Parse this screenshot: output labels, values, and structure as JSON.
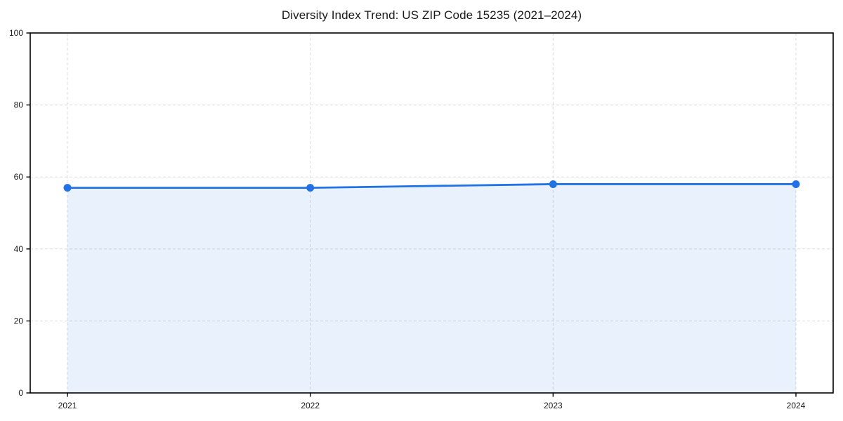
{
  "chart_data": {
    "type": "line",
    "title": "Diversity Index Trend: US ZIP Code 15235 (2021–2024)",
    "x": [
      2021,
      2022,
      2023,
      2024
    ],
    "xtick_labels": [
      "2021",
      "2022",
      "2023",
      "2024"
    ],
    "series": [
      {
        "name": "Diversity Index",
        "values": [
          57,
          57,
          58,
          58
        ]
      }
    ],
    "xlabel": "",
    "ylabel": "",
    "ylim": [
      0,
      100
    ],
    "yticks": [
      0,
      20,
      40,
      60,
      80,
      100
    ],
    "grid": {
      "show": true,
      "style": "dashed",
      "axes": "both"
    },
    "legend": {
      "show": false
    },
    "area_fill": true,
    "markers": true,
    "colors": {
      "line": "#2172e5",
      "marker": "#2172e5",
      "area_fill": "#2172e5",
      "area_fill_opacity": 0.1,
      "grid": "#dcdcdc",
      "axis": "#000000",
      "text": "#1a1a1a",
      "background": "#ffffff"
    }
  }
}
